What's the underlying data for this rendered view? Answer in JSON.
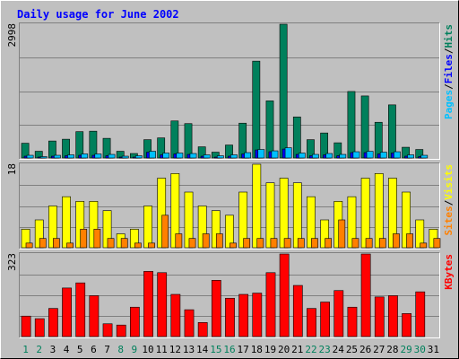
{
  "title": "Daily usage for June 2002",
  "colors": {
    "background": "#c0c0c0",
    "frame_light": "#ffffff",
    "frame_dark": "#808080",
    "grid": "#808080",
    "title": "#0000ff",
    "hits": "#00805c",
    "files": "#0000ff",
    "pages": "#00c0ff",
    "visits": "#ffff00",
    "sites": "#ff8000",
    "kbytes": "#ff0000",
    "day_weekday": "#000000",
    "day_weekend": "#00805c"
  },
  "chart_data": [
    {
      "type": "bar",
      "panel": "hits",
      "ymax_label": "2998",
      "legend": [
        {
          "name": "Pages",
          "color": "#00c0ff"
        },
        {
          "name": "/",
          "color": "#000000"
        },
        {
          "name": "Files",
          "color": "#0000ff"
        },
        {
          "name": "/",
          "color": "#000000"
        },
        {
          "name": "Hits",
          "color": "#00805c"
        }
      ],
      "ylim": [
        0,
        2998
      ],
      "categories": [
        "1",
        "2",
        "3",
        "4",
        "5",
        "6",
        "7",
        "8",
        "9",
        "10",
        "11",
        "12",
        "13",
        "14",
        "15",
        "16",
        "17",
        "18",
        "19",
        "20",
        "21",
        "22",
        "23",
        "24",
        "25",
        "26",
        "27",
        "28",
        "29",
        "30",
        "31"
      ],
      "series": [
        {
          "name": "Hits",
          "values": [
            330,
            150,
            380,
            420,
            590,
            600,
            440,
            150,
            100,
            410,
            450,
            830,
            770,
            250,
            130,
            290,
            780,
            2170,
            1280,
            2998,
            920,
            410,
            560,
            340,
            1490,
            1390,
            800,
            1190,
            240,
            190,
            0
          ]
        },
        {
          "name": "Files",
          "values": [
            40,
            20,
            40,
            50,
            60,
            60,
            50,
            20,
            20,
            130,
            70,
            90,
            80,
            40,
            20,
            40,
            90,
            180,
            140,
            200,
            80,
            50,
            70,
            50,
            120,
            120,
            90,
            110,
            40,
            30,
            0
          ]
        },
        {
          "name": "Pages",
          "values": [
            60,
            30,
            60,
            70,
            90,
            90,
            80,
            40,
            50,
            150,
            110,
            110,
            100,
            70,
            50,
            70,
            120,
            190,
            160,
            230,
            110,
            80,
            100,
            80,
            140,
            150,
            130,
            140,
            70,
            60,
            0
          ]
        }
      ]
    },
    {
      "type": "bar",
      "panel": "visits",
      "ymax_label": "18",
      "legend": [
        {
          "name": "Sites",
          "color": "#ff8000"
        },
        {
          "name": "/",
          "color": "#000000"
        },
        {
          "name": "Visits",
          "color": "#ffff00"
        }
      ],
      "ylim": [
        0,
        18
      ],
      "categories": [
        "1",
        "2",
        "3",
        "4",
        "5",
        "6",
        "7",
        "8",
        "9",
        "10",
        "11",
        "12",
        "13",
        "14",
        "15",
        "16",
        "17",
        "18",
        "19",
        "20",
        "21",
        "22",
        "23",
        "24",
        "25",
        "26",
        "27",
        "28",
        "29",
        "30",
        "31"
      ],
      "series": [
        {
          "name": "Visits",
          "values": [
            4,
            6,
            9,
            11,
            10,
            10,
            8,
            3,
            4,
            9,
            15,
            16,
            12,
            9,
            8,
            7,
            12,
            18,
            14,
            15,
            14,
            11,
            6,
            10,
            11,
            15,
            16,
            15,
            12,
            6,
            4
          ]
        },
        {
          "name": "Sites",
          "values": [
            1,
            2,
            2,
            1,
            4,
            4,
            2,
            2,
            1,
            1,
            7,
            3,
            2,
            3,
            3,
            1,
            2,
            2,
            2,
            2,
            2,
            2,
            2,
            6,
            2,
            2,
            2,
            3,
            3,
            1,
            2
          ]
        }
      ]
    },
    {
      "type": "bar",
      "panel": "kbytes",
      "ymax_label": "323",
      "legend": [
        {
          "name": "KBytes",
          "color": "#ff0000"
        }
      ],
      "ylim": [
        0,
        323
      ],
      "categories": [
        "1",
        "2",
        "3",
        "4",
        "5",
        "6",
        "7",
        "8",
        "9",
        "10",
        "11",
        "12",
        "13",
        "14",
        "15",
        "16",
        "17",
        "18",
        "19",
        "20",
        "21",
        "22",
        "23",
        "24",
        "25",
        "26",
        "27",
        "28",
        "29",
        "30",
        "31"
      ],
      "series": [
        {
          "name": "KBytes",
          "values": [
            80,
            70,
            110,
            190,
            210,
            160,
            50,
            45,
            115,
            255,
            250,
            165,
            105,
            55,
            220,
            150,
            165,
            170,
            250,
            323,
            200,
            110,
            135,
            180,
            115,
            323,
            155,
            160,
            90,
            175,
            0
          ]
        }
      ]
    }
  ],
  "days": [
    {
      "label": "1",
      "weekend": true
    },
    {
      "label": "2",
      "weekend": true
    },
    {
      "label": "3",
      "weekend": false
    },
    {
      "label": "4",
      "weekend": false
    },
    {
      "label": "5",
      "weekend": false
    },
    {
      "label": "6",
      "weekend": false
    },
    {
      "label": "7",
      "weekend": false
    },
    {
      "label": "8",
      "weekend": true
    },
    {
      "label": "9",
      "weekend": true
    },
    {
      "label": "10",
      "weekend": false
    },
    {
      "label": "11",
      "weekend": false
    },
    {
      "label": "12",
      "weekend": false
    },
    {
      "label": "13",
      "weekend": false
    },
    {
      "label": "14",
      "weekend": false
    },
    {
      "label": "15",
      "weekend": true
    },
    {
      "label": "16",
      "weekend": true
    },
    {
      "label": "17",
      "weekend": false
    },
    {
      "label": "18",
      "weekend": false
    },
    {
      "label": "19",
      "weekend": false
    },
    {
      "label": "20",
      "weekend": false
    },
    {
      "label": "21",
      "weekend": false
    },
    {
      "label": "22",
      "weekend": true
    },
    {
      "label": "23",
      "weekend": true
    },
    {
      "label": "24",
      "weekend": false
    },
    {
      "label": "25",
      "weekend": false
    },
    {
      "label": "26",
      "weekend": false
    },
    {
      "label": "27",
      "weekend": false
    },
    {
      "label": "28",
      "weekend": false
    },
    {
      "label": "29",
      "weekend": true
    },
    {
      "label": "30",
      "weekend": true
    },
    {
      "label": "31",
      "weekend": false
    }
  ]
}
